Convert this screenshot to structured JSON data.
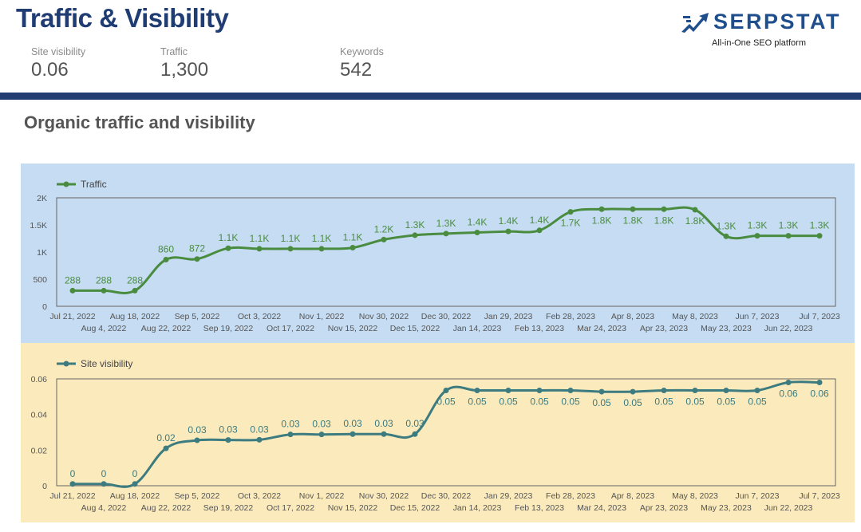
{
  "header": {
    "title": "Traffic & Visibility",
    "kpis": [
      {
        "label": "Site visibility",
        "value": "0.06"
      },
      {
        "label": "Traffic",
        "value": "1,300"
      },
      {
        "label": "Keywords",
        "value": "542"
      }
    ],
    "logo": {
      "brand": "SERPSTAT",
      "tagline": "All-in-One SEO platform"
    }
  },
  "section": {
    "title": "Organic traffic and visibility"
  },
  "colors": {
    "brand": "#1f3c73",
    "traffic": "#4a8c3f",
    "visibility": "#3c7b80",
    "traffic_bg": "#c5dcf2",
    "visibility_bg": "#fbeabb"
  },
  "chart_data": [
    {
      "type": "line",
      "title": "",
      "legend": "Traffic",
      "legend_position": "top-left",
      "x": [
        "Jul 21, 2022",
        "Aug 4, 2022",
        "Aug 18, 2022",
        "Aug 22, 2022",
        "Sep 5, 2022",
        "Sep 19, 2022",
        "Oct 3, 2022",
        "Oct 17, 2022",
        "Nov 1, 2022",
        "Nov 15, 2022",
        "Nov 30, 2022",
        "Dec 15, 2022",
        "Dec 30, 2022",
        "Jan 14, 2023",
        "Jan 29, 2023",
        "Feb 13, 2023",
        "Feb 28, 2023",
        "Mar 24, 2023",
        "Apr 8, 2023",
        "Apr 23, 2023",
        "May 8, 2023",
        "May 23, 2023",
        "Jun 7, 2023",
        "Jun 22, 2023",
        "Jul 7, 2023"
      ],
      "values": [
        288,
        288,
        288,
        860,
        872,
        1070,
        1060,
        1060,
        1060,
        1080,
        1230,
        1310,
        1340,
        1360,
        1380,
        1400,
        1740,
        1790,
        1790,
        1790,
        1780,
        1290,
        1300,
        1300,
        1300
      ],
      "labels": [
        "288",
        "288",
        "288",
        "860",
        "872",
        "1.1K",
        "1.1K",
        "1.1K",
        "1.1K",
        "1.1K",
        "1.2K",
        "1.3K",
        "1.3K",
        "1.4K",
        "1.4K",
        "1.4K",
        "1.7K",
        "1.8K",
        "1.8K",
        "1.8K",
        "1.8K",
        "1.3K",
        "1.3K",
        "1.3K",
        "1.3K"
      ],
      "label_position": [
        "above",
        "above",
        "above",
        "above",
        "above",
        "above",
        "above",
        "above",
        "above",
        "above",
        "above",
        "above",
        "above",
        "above",
        "above",
        "above",
        "below",
        "below",
        "below",
        "below",
        "below",
        "above",
        "above",
        "above",
        "above"
      ],
      "ylim": [
        0,
        2000
      ],
      "yticks": [
        0,
        500,
        1000,
        1500,
        2000
      ],
      "ytick_labels": [
        "0",
        "500",
        "1K",
        "1.5K",
        "2K"
      ],
      "grid": false
    },
    {
      "type": "line",
      "title": "",
      "legend": "Site visibility",
      "legend_position": "top-left",
      "x": [
        "Jul 21, 2022",
        "Aug 4, 2022",
        "Aug 18, 2022",
        "Aug 22, 2022",
        "Sep 5, 2022",
        "Sep 19, 2022",
        "Oct 3, 2022",
        "Oct 17, 2022",
        "Nov 1, 2022",
        "Nov 15, 2022",
        "Nov 30, 2022",
        "Dec 15, 2022",
        "Dec 30, 2022",
        "Jan 14, 2023",
        "Jan 29, 2023",
        "Feb 13, 2023",
        "Feb 28, 2023",
        "Mar 24, 2023",
        "Apr 8, 2023",
        "Apr 23, 2023",
        "May 8, 2023",
        "May 23, 2023",
        "Jun 7, 2023",
        "Jun 22, 2023",
        "Jul 7, 2023"
      ],
      "values": [
        0.001,
        0.001,
        0.001,
        0.021,
        0.0255,
        0.0257,
        0.0258,
        0.0288,
        0.0288,
        0.029,
        0.029,
        0.029,
        0.0535,
        0.0535,
        0.0535,
        0.0535,
        0.0535,
        0.0528,
        0.0528,
        0.0535,
        0.0535,
        0.0535,
        0.0535,
        0.058,
        0.058
      ],
      "labels": [
        "0",
        "0",
        "0",
        "0.02",
        "0.03",
        "0.03",
        "0.03",
        "0.03",
        "0.03",
        "0.03",
        "0.03",
        "0.03",
        "0.05",
        "0.05",
        "0.05",
        "0.05",
        "0.05",
        "0.05",
        "0.05",
        "0.05",
        "0.05",
        "0.05",
        "0.05",
        "0.06",
        "0.06"
      ],
      "label_position": [
        "above",
        "above",
        "above",
        "above",
        "above",
        "above",
        "above",
        "above",
        "above",
        "above",
        "above",
        "above",
        "below",
        "below",
        "below",
        "below",
        "below",
        "below",
        "below",
        "below",
        "below",
        "below",
        "below",
        "below",
        "below"
      ],
      "ylim": [
        0,
        0.06
      ],
      "yticks": [
        0,
        0.02,
        0.04,
        0.06
      ],
      "ytick_labels": [
        "0",
        "0.02",
        "0.04",
        "0.06"
      ],
      "grid": false
    }
  ]
}
